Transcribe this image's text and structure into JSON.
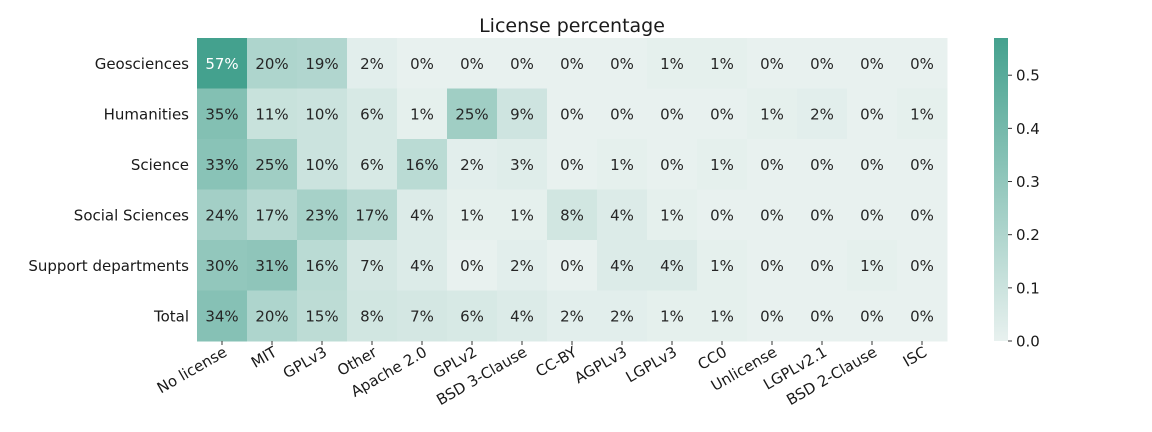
{
  "chart_data": {
    "type": "heatmap",
    "title": "License percentage",
    "rows": [
      "Geosciences",
      "Humanities",
      "Science",
      "Social Sciences",
      "Support departments",
      "Total"
    ],
    "columns": [
      "No license",
      "MIT",
      "GPLv3",
      "Other",
      "Apache 2.0",
      "GPLv2",
      "BSD 3-Clause",
      "CC-BY",
      "AGPLv3",
      "LGPLv3",
      "CC0",
      "Unlicense",
      "LGPLv2.1",
      "BSD 2-Clause",
      "ISC"
    ],
    "values": [
      [
        0.57,
        0.2,
        0.19,
        0.02,
        0.0,
        0.0,
        0.0,
        0.0,
        0.0,
        0.01,
        0.01,
        0.0,
        0.0,
        0.0,
        0.0
      ],
      [
        0.35,
        0.11,
        0.1,
        0.06,
        0.01,
        0.25,
        0.09,
        0.0,
        0.0,
        0.0,
        0.0,
        0.01,
        0.02,
        0.0,
        0.01
      ],
      [
        0.33,
        0.25,
        0.1,
        0.06,
        0.16,
        0.02,
        0.03,
        0.0,
        0.01,
        0.0,
        0.01,
        0.0,
        0.0,
        0.0,
        0.0
      ],
      [
        0.24,
        0.17,
        0.23,
        0.17,
        0.04,
        0.01,
        0.01,
        0.08,
        0.04,
        0.01,
        0.0,
        0.0,
        0.0,
        0.0,
        0.0
      ],
      [
        0.3,
        0.31,
        0.16,
        0.07,
        0.04,
        0.0,
        0.02,
        0.0,
        0.04,
        0.04,
        0.01,
        0.0,
        0.0,
        0.01,
        0.0
      ],
      [
        0.34,
        0.2,
        0.15,
        0.08,
        0.07,
        0.06,
        0.04,
        0.02,
        0.02,
        0.01,
        0.01,
        0.0,
        0.0,
        0.0,
        0.0
      ]
    ],
    "cell_labels": [
      [
        "57%",
        "20%",
        "19%",
        "2%",
        "0%",
        "0%",
        "0%",
        "0%",
        "0%",
        "1%",
        "1%",
        "0%",
        "0%",
        "0%",
        "0%"
      ],
      [
        "35%",
        "11%",
        "10%",
        "6%",
        "1%",
        "25%",
        "9%",
        "0%",
        "0%",
        "0%",
        "0%",
        "1%",
        "2%",
        "0%",
        "1%"
      ],
      [
        "33%",
        "25%",
        "10%",
        "6%",
        "16%",
        "2%",
        "3%",
        "0%",
        "1%",
        "0%",
        "1%",
        "0%",
        "0%",
        "0%",
        "0%"
      ],
      [
        "24%",
        "17%",
        "23%",
        "17%",
        "4%",
        "1%",
        "1%",
        "8%",
        "4%",
        "1%",
        "0%",
        "0%",
        "0%",
        "0%",
        "0%"
      ],
      [
        "30%",
        "31%",
        "16%",
        "7%",
        "4%",
        "0%",
        "2%",
        "0%",
        "4%",
        "4%",
        "1%",
        "0%",
        "0%",
        "1%",
        "0%"
      ],
      [
        "34%",
        "20%",
        "15%",
        "8%",
        "7%",
        "6%",
        "4%",
        "2%",
        "2%",
        "1%",
        "1%",
        "0%",
        "0%",
        "0%",
        "0%"
      ]
    ],
    "colorbar": {
      "range": [
        0.0,
        0.57
      ],
      "ticks": [
        0.0,
        0.1,
        0.2,
        0.3,
        0.4,
        0.5
      ],
      "tick_labels": [
        "0.0",
        "0.1",
        "0.2",
        "0.3",
        "0.4",
        "0.5"
      ],
      "placement": "right"
    },
    "colors": {
      "low": "#e8f1ef",
      "high": "#44a18e",
      "text_dark": "#262626",
      "text_light": "#ffffff"
    }
  }
}
